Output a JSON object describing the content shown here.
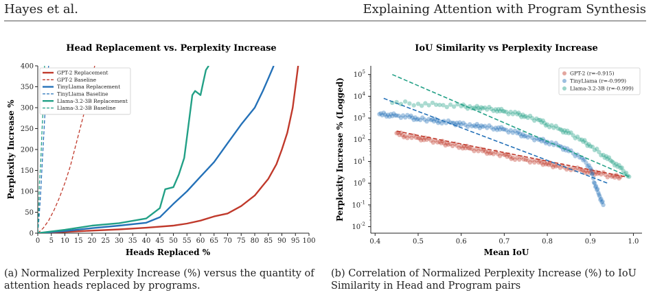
{
  "header": {
    "authors": "Hayes et al.",
    "running_title": "Explaining Attention with Program Synthesis"
  },
  "captions": {
    "a": "(a) Normalized Perplexity Increase (%) versus the quantity of attention heads replaced by programs.",
    "b": "(b) Correlation of Normalized Perplexity Increase (%) to IoU Similarity in Head and Program pairs"
  },
  "colors": {
    "gpt2": "#c0392b",
    "tinyllama": "#2471b8",
    "llama": "#22a086"
  },
  "chart_data": [
    {
      "type": "line",
      "title": "Head Replacement vs. Perplexity Increase",
      "xlabel": "Heads Replaced %",
      "ylabel": "Perplexity Increase %",
      "xlim": [
        0,
        100
      ],
      "ylim": [
        0,
        400
      ],
      "xticks": [
        0,
        5,
        10,
        15,
        20,
        25,
        30,
        35,
        40,
        45,
        50,
        55,
        60,
        65,
        70,
        75,
        80,
        85,
        90,
        95,
        100
      ],
      "yticks": [
        0,
        50,
        100,
        150,
        200,
        250,
        300,
        350,
        400
      ],
      "grid": false,
      "legend": "top-left",
      "series": [
        {
          "name": "GPT-2 Replacement",
          "color": "#c0392b",
          "dash": false,
          "x": [
            0,
            10,
            20,
            30,
            40,
            50,
            55,
            60,
            65,
            70,
            75,
            80,
            85,
            88,
            90,
            92,
            93,
            94,
            95,
            96
          ],
          "y": [
            0,
            3,
            6,
            9,
            13,
            18,
            23,
            30,
            40,
            47,
            65,
            90,
            130,
            165,
            200,
            240,
            270,
            300,
            350,
            400
          ]
        },
        {
          "name": "GPT-2 Baseline",
          "color": "#c0392b",
          "dash": true,
          "x": [
            0,
            2,
            4,
            6,
            8,
            10,
            12,
            14,
            16,
            18,
            19,
            20,
            21
          ],
          "y": [
            0,
            12,
            30,
            55,
            85,
            120,
            160,
            210,
            260,
            310,
            340,
            370,
            400
          ]
        },
        {
          "name": "TinyLlama Replacement",
          "color": "#2471b8",
          "dash": false,
          "x": [
            0,
            10,
            20,
            30,
            40,
            45,
            50,
            55,
            60,
            65,
            70,
            75,
            80,
            83,
            85,
            87
          ],
          "y": [
            0,
            5,
            12,
            18,
            25,
            38,
            70,
            100,
            135,
            170,
            215,
            260,
            300,
            340,
            370,
            400
          ]
        },
        {
          "name": "TinyLlama Baseline",
          "color": "#2471b8",
          "dash": true,
          "x": [
            0,
            0.5,
            1,
            1.5,
            2,
            2.5,
            3,
            3.5,
            4
          ],
          "y": [
            0,
            40,
            90,
            150,
            210,
            270,
            320,
            360,
            400
          ]
        },
        {
          "name": "Llama-3.2-3B Replacement",
          "color": "#22a086",
          "dash": false,
          "x": [
            0,
            10,
            20,
            30,
            40,
            45,
            47,
            50,
            52,
            54,
            55,
            56,
            57,
            58,
            60,
            61,
            62,
            63
          ],
          "y": [
            0,
            8,
            18,
            24,
            35,
            60,
            105,
            110,
            140,
            180,
            230,
            280,
            330,
            340,
            330,
            360,
            390,
            400
          ]
        },
        {
          "name": "Llama-3.2-3B Baseline",
          "color": "#22a086",
          "dash": true,
          "x": [
            0,
            0.3,
            0.6,
            1,
            1.3,
            1.6,
            2,
            2.5
          ],
          "y": [
            0,
            50,
            120,
            160,
            200,
            250,
            300,
            400
          ]
        }
      ]
    },
    {
      "type": "scatter",
      "title": "IoU Similarity vs Perplexity Increase",
      "xlabel": "Mean IoU",
      "ylabel": "Perplexity Increase % (Logged)",
      "xlim": [
        0.39,
        1.02
      ],
      "ylim_log10": [
        -2.3,
        5.4
      ],
      "yscale": "log",
      "xticks": [
        0.4,
        0.5,
        0.6,
        0.7,
        0.8,
        0.9,
        1.0
      ],
      "xtick_labels": [
        "0.4",
        "0.5",
        "0.6",
        "0.7",
        "0.8",
        "0.9",
        "1.0"
      ],
      "ytick_exponents": [
        -2,
        -1,
        0,
        1,
        2,
        3,
        4,
        5
      ],
      "grid": false,
      "legend": "top-right",
      "series": [
        {
          "name": "GPT-2 (r=-0.915)",
          "color": "#c0392b",
          "x": [
            0.45,
            0.47,
            0.5,
            0.52,
            0.55,
            0.57,
            0.6,
            0.62,
            0.65,
            0.67,
            0.7,
            0.72,
            0.75,
            0.78,
            0.8,
            0.82,
            0.85,
            0.88,
            0.9,
            0.92,
            0.95,
            0.97
          ],
          "y": [
            200,
            150,
            120,
            100,
            80,
            60,
            50,
            40,
            30,
            25,
            20,
            15,
            12,
            9,
            8,
            6,
            5,
            4,
            3,
            3,
            2,
            2
          ],
          "trend": [
            [
              0.45,
              250
            ],
            [
              0.98,
              2
            ]
          ]
        },
        {
          "name": "TinyLlama (r=-0.999)",
          "color": "#2471b8",
          "x": [
            0.41,
            0.43,
            0.45,
            0.48,
            0.5,
            0.53,
            0.55,
            0.58,
            0.6,
            0.63,
            0.65,
            0.68,
            0.7,
            0.73,
            0.75,
            0.78,
            0.8,
            0.83,
            0.85,
            0.88,
            0.9,
            0.91,
            0.92,
            0.93
          ],
          "y": [
            1500,
            1400,
            1300,
            1100,
            900,
            800,
            700,
            600,
            500,
            450,
            400,
            350,
            300,
            200,
            150,
            100,
            80,
            50,
            30,
            15,
            5,
            1,
            0.3,
            0.1
          ],
          "trend": [
            [
              0.42,
              8000
            ],
            [
              0.94,
              1
            ]
          ]
        },
        {
          "name": "Llama-3.2-3B (r=-0.999)",
          "color": "#22a086",
          "x": [
            0.44,
            0.5,
            0.55,
            0.6,
            0.63,
            0.65,
            0.68,
            0.7,
            0.73,
            0.75,
            0.78,
            0.8,
            0.83,
            0.85,
            0.88,
            0.9,
            0.93,
            0.95,
            0.97,
            0.99
          ],
          "y": [
            5000,
            4500,
            4000,
            3500,
            3000,
            2800,
            2500,
            2000,
            1500,
            1200,
            800,
            500,
            300,
            200,
            100,
            50,
            20,
            10,
            5,
            2
          ],
          "trend": [
            [
              0.44,
              100000
            ],
            [
              0.99,
              2
            ]
          ]
        }
      ]
    }
  ]
}
